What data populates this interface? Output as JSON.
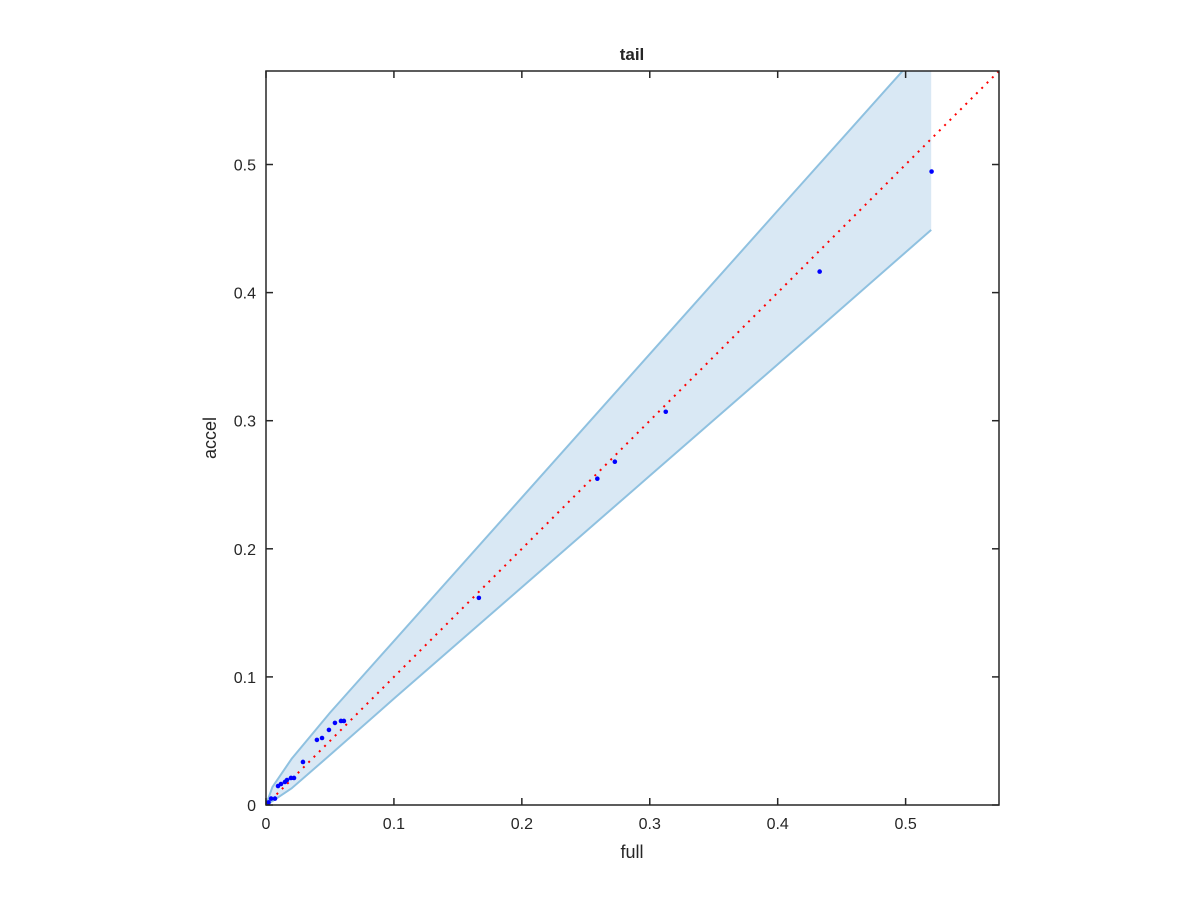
{
  "chart_data": {
    "type": "scatter",
    "title": "tail",
    "xlabel": "full",
    "ylabel": "accel",
    "xlim": [
      0,
      0.573
    ],
    "ylim": [
      0,
      0.573
    ],
    "xticks": [
      0,
      0.1,
      0.2,
      0.3,
      0.4,
      0.5
    ],
    "yticks": [
      0,
      0.1,
      0.2,
      0.3,
      0.4,
      0.5
    ],
    "xtick_labels": [
      "0",
      "0.1",
      "0.2",
      "0.3",
      "0.4",
      "0.5"
    ],
    "ytick_labels": [
      "0",
      "0.1",
      "0.2",
      "0.3",
      "0.4",
      "0.5"
    ],
    "grid": false,
    "points": {
      "color": "#0000ff",
      "x": [
        0,
        0.002,
        0.004,
        0.007,
        0.0094,
        0.0117,
        0.0148,
        0.0164,
        0.0195,
        0.0219,
        0.0289,
        0.0398,
        0.0438,
        0.0492,
        0.0539,
        0.0586,
        0.0609,
        0.1664,
        0.259,
        0.2727,
        0.3125,
        0.4328,
        0.5203
      ],
      "y": [
        0,
        0.002,
        0.005,
        0.005,
        0.0148,
        0.0164,
        0.018,
        0.0195,
        0.0211,
        0.0211,
        0.0336,
        0.0508,
        0.0523,
        0.0586,
        0.0641,
        0.0656,
        0.0656,
        0.1617,
        0.2547,
        0.268,
        0.307,
        0.4164,
        0.4945
      ]
    },
    "band": {
      "fill": "#d9e8f4",
      "edge": "#8fc1e0",
      "x": [
        0,
        0.005,
        0.02,
        0.05,
        0.1,
        0.2,
        0.3,
        0.4,
        0.52
      ],
      "upper": [
        0,
        0.014,
        0.036,
        0.072,
        0.128,
        0.24,
        0.352,
        0.464,
        0.598
      ],
      "lower": [
        0,
        0.003,
        0.013,
        0.039,
        0.083,
        0.17,
        0.257,
        0.344,
        0.449
      ]
    },
    "reference_line": {
      "type": "y=x",
      "style": "dotted",
      "color": "#ff0000"
    }
  }
}
